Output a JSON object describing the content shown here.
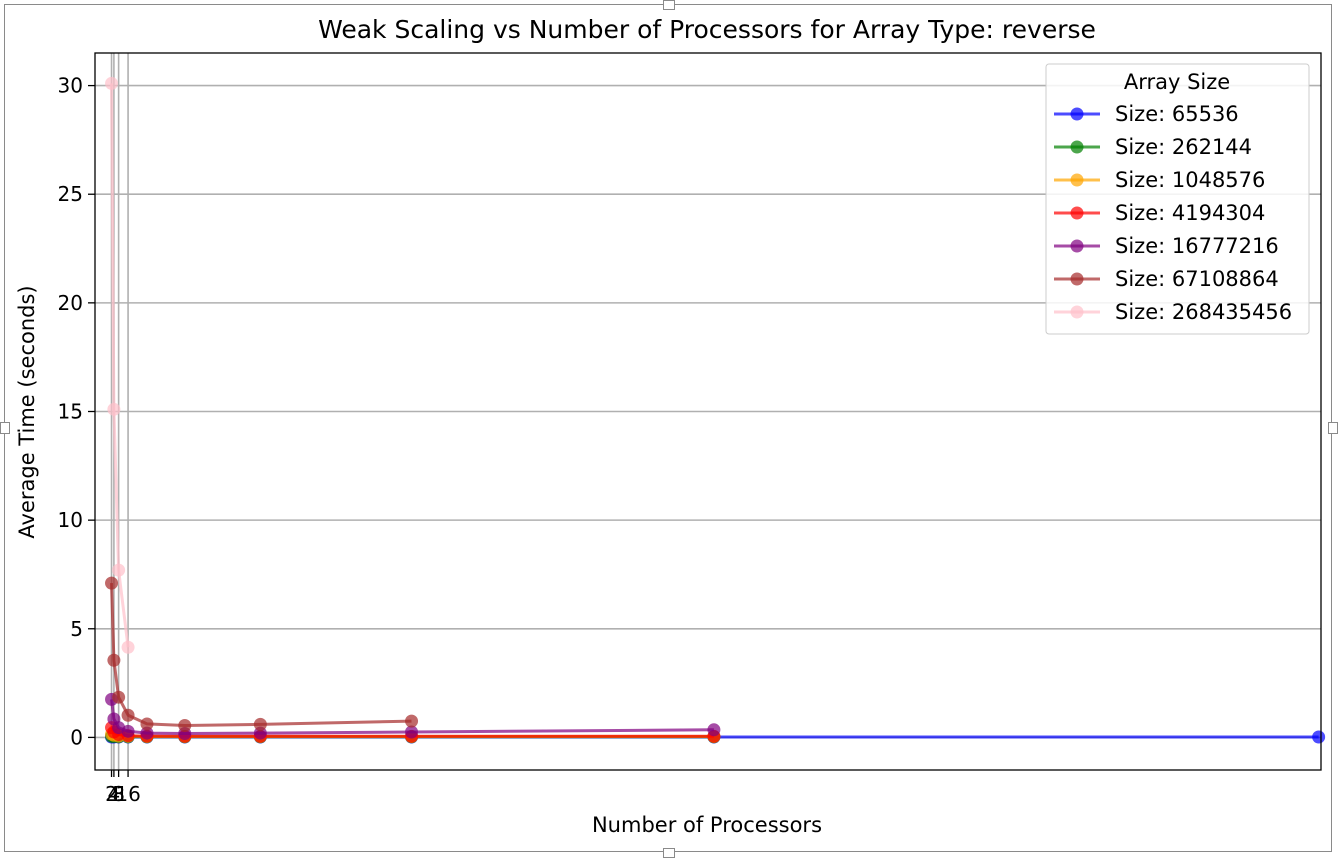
{
  "chart_data": {
    "type": "line",
    "title": "Weak Scaling vs Number of Processors for Array Type: reverse",
    "xlabel": "Number of Processors",
    "ylabel": "Average Time (seconds)",
    "xlim": [
      -12,
      1026
    ],
    "ylim": [
      -1.5,
      31.5
    ],
    "xticks": [
      2,
      4,
      8,
      16
    ],
    "xtick_labels": [
      "2",
      "4",
      "8",
      "16"
    ],
    "yticks": [
      0,
      5,
      10,
      15,
      20,
      25,
      30
    ],
    "grid": true,
    "legend_title": "Array Size",
    "legend_position": "top-right",
    "series": [
      {
        "name": "Size: 65536",
        "color": "#0000ff",
        "x": [
          2,
          4,
          8,
          16,
          32,
          64,
          128,
          256,
          512,
          1024
        ],
        "y": [
          0.02,
          0.02,
          0.02,
          0.02,
          0.02,
          0.02,
          0.02,
          0.02,
          0.02,
          0.02
        ]
      },
      {
        "name": "Size: 262144",
        "color": "#008000",
        "x": [
          2,
          4,
          8,
          16,
          32,
          64,
          128,
          256,
          512
        ],
        "y": [
          0.05,
          0.04,
          0.03,
          0.03,
          0.03,
          0.03,
          0.03,
          0.03,
          0.03
        ]
      },
      {
        "name": "Size: 1048576",
        "color": "#ffa500",
        "x": [
          2,
          4,
          8,
          16,
          32,
          64,
          128,
          256,
          512
        ],
        "y": [
          0.15,
          0.1,
          0.06,
          0.05,
          0.04,
          0.04,
          0.04,
          0.04,
          0.04
        ]
      },
      {
        "name": "Size: 4194304",
        "color": "#ff0000",
        "x": [
          2,
          4,
          8,
          16,
          32,
          64,
          128,
          256,
          512
        ],
        "y": [
          0.45,
          0.25,
          0.13,
          0.08,
          0.06,
          0.05,
          0.05,
          0.05,
          0.05
        ]
      },
      {
        "name": "Size: 16777216",
        "color": "#800080",
        "x": [
          2,
          4,
          8,
          16,
          32,
          64,
          128,
          256,
          512
        ],
        "y": [
          1.75,
          0.85,
          0.45,
          0.28,
          0.2,
          0.18,
          0.2,
          0.25,
          0.35
        ]
      },
      {
        "name": "Size: 67108864",
        "color": "#a52a2a",
        "x": [
          2,
          4,
          8,
          16,
          32,
          64,
          128,
          256
        ],
        "y": [
          7.1,
          3.55,
          1.85,
          1.02,
          0.62,
          0.55,
          0.6,
          0.75
        ]
      },
      {
        "name": "Size: 268435456",
        "color": "#ffc0cb",
        "x": [
          2,
          4,
          8,
          16
        ],
        "y": [
          30.1,
          15.1,
          7.7,
          4.15
        ]
      }
    ]
  }
}
